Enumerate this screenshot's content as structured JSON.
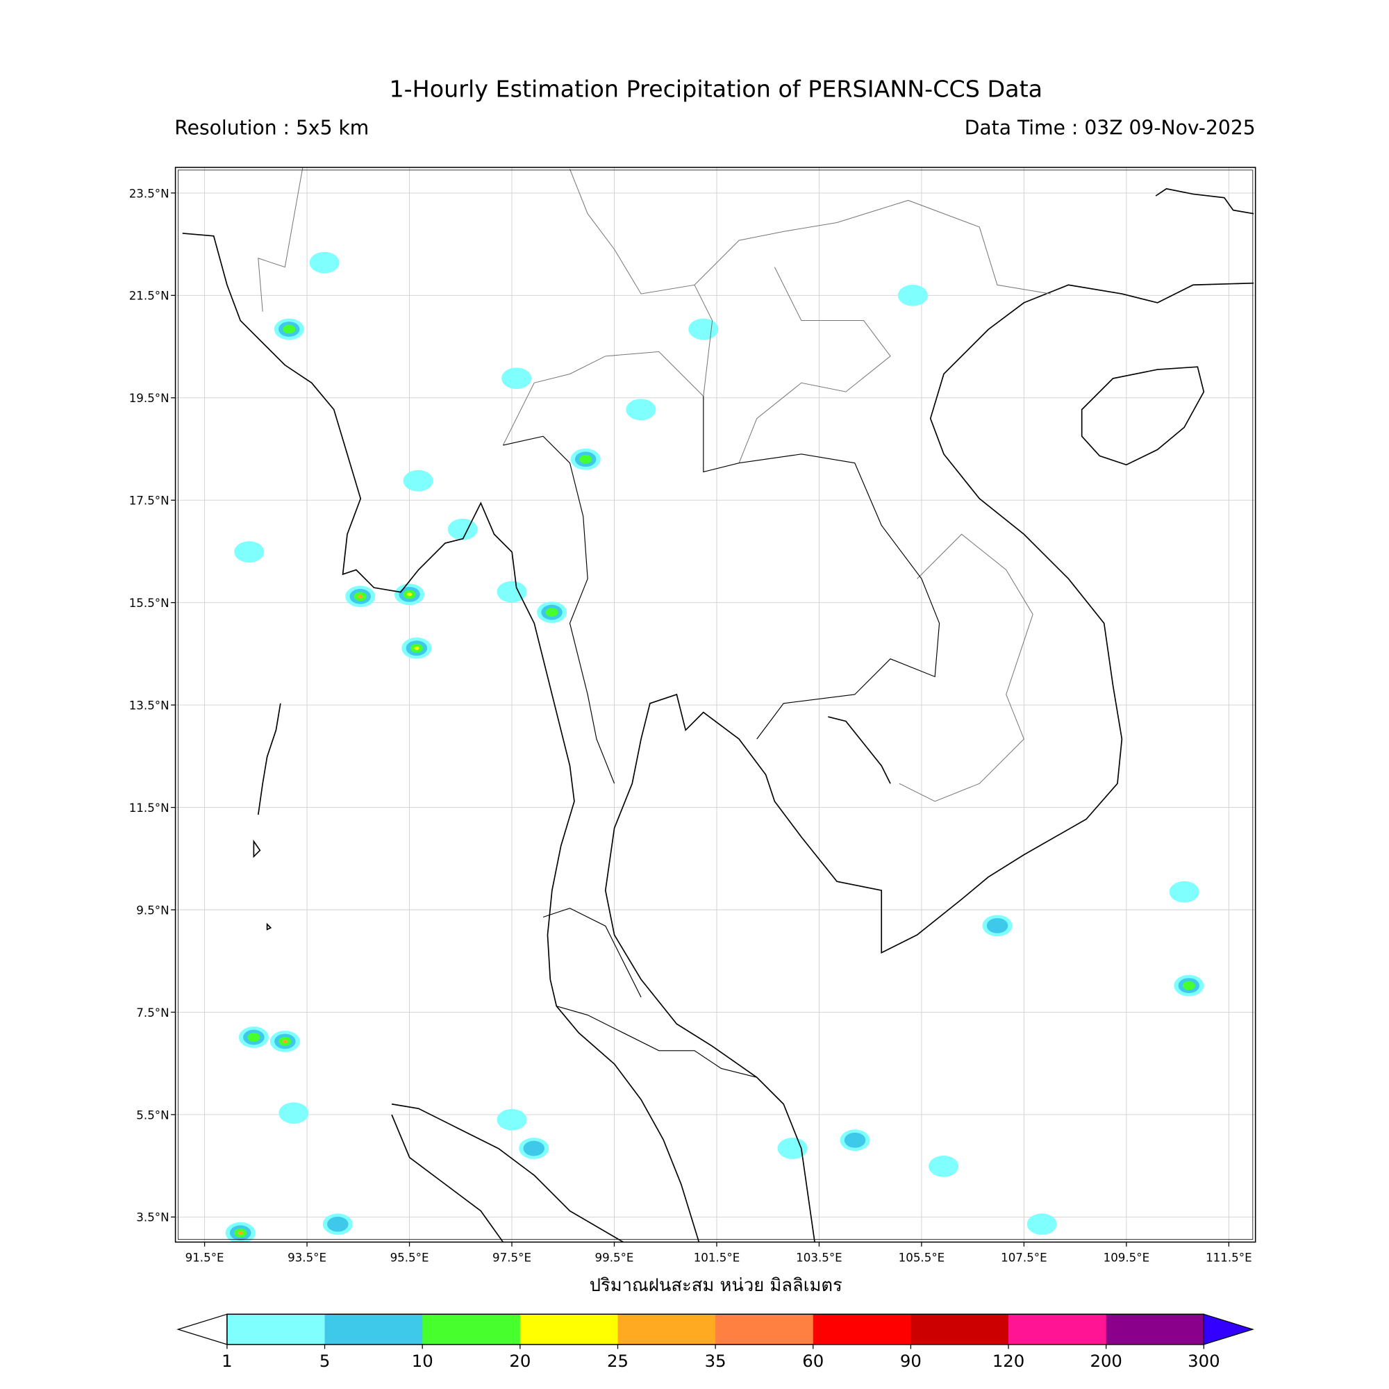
{
  "header": {
    "title": "1-Hourly Estimation Precipitation of PERSIANN-CCS Data",
    "resolution": "Resolution : 5x5 km",
    "data_time": "Data Time : 03Z 09-Nov-2025"
  },
  "map": {
    "extent_lon": [
      90.93,
      112.02
    ],
    "extent_lat": [
      3.01,
      24.0
    ],
    "lon_ticks": [
      "91.5°E",
      "93.5°E",
      "95.5°E",
      "97.5°E",
      "99.5°E",
      "101.5°E",
      "103.5°E",
      "105.5°E",
      "107.5°E",
      "109.5°E",
      "111.5°E"
    ],
    "lon_values": [
      91.5,
      93.5,
      95.5,
      97.5,
      99.5,
      101.5,
      103.5,
      105.5,
      107.5,
      109.5,
      111.5
    ],
    "lat_ticks": [
      "23.5°N",
      "21.5°N",
      "19.5°N",
      "17.5°N",
      "15.5°N",
      "13.5°N",
      "11.5°N",
      "9.5°N",
      "7.5°N",
      "5.5°N",
      "3.5°N"
    ],
    "lat_values": [
      23.5,
      21.5,
      19.5,
      17.5,
      15.5,
      13.5,
      11.5,
      9.5,
      7.5,
      5.5,
      3.5
    ],
    "grid": true,
    "rain_cells": [
      {
        "lon": 94.54,
        "lat": 15.62,
        "mm": 25
      },
      {
        "lon": 95.5,
        "lat": 15.66,
        "mm": 20
      },
      {
        "lon": 95.64,
        "lat": 14.61,
        "mm": 20
      },
      {
        "lon": 96.54,
        "lat": 16.93,
        "mm": 3
      },
      {
        "lon": 97.5,
        "lat": 15.71,
        "mm": 3
      },
      {
        "lon": 98.28,
        "lat": 15.31,
        "mm": 15
      },
      {
        "lon": 98.94,
        "lat": 18.3,
        "mm": 15
      },
      {
        "lon": 100.02,
        "lat": 19.27,
        "mm": 3
      },
      {
        "lon": 101.24,
        "lat": 20.84,
        "mm": 2
      },
      {
        "lon": 105.33,
        "lat": 21.5,
        "mm": 2
      },
      {
        "lon": 106.98,
        "lat": 9.19,
        "mm": 7
      },
      {
        "lon": 110.72,
        "lat": 8.02,
        "mm": 15
      },
      {
        "lon": 110.63,
        "lat": 9.85,
        "mm": 3
      },
      {
        "lon": 104.2,
        "lat": 5.0,
        "mm": 7
      },
      {
        "lon": 97.93,
        "lat": 4.84,
        "mm": 7
      },
      {
        "lon": 97.5,
        "lat": 5.4,
        "mm": 3
      },
      {
        "lon": 92.2,
        "lat": 3.19,
        "mm": 25
      },
      {
        "lon": 94.1,
        "lat": 3.36,
        "mm": 7
      },
      {
        "lon": 93.24,
        "lat": 5.53,
        "mm": 3
      },
      {
        "lon": 107.85,
        "lat": 3.36,
        "mm": 2
      },
      {
        "lon": 105.93,
        "lat": 4.49,
        "mm": 3
      },
      {
        "lon": 102.98,
        "lat": 4.84,
        "mm": 2
      },
      {
        "lon": 92.46,
        "lat": 7.01,
        "mm": 15
      },
      {
        "lon": 93.07,
        "lat": 6.93,
        "mm": 25
      },
      {
        "lon": 92.37,
        "lat": 16.49,
        "mm": 2
      },
      {
        "lon": 93.15,
        "lat": 20.84,
        "mm": 15
      },
      {
        "lon": 93.84,
        "lat": 22.14,
        "mm": 2
      },
      {
        "lon": 95.67,
        "lat": 17.88,
        "mm": 3
      },
      {
        "lon": 97.59,
        "lat": 19.88,
        "mm": 2
      }
    ]
  },
  "xlabel": "ปริมาณฝนสะสม หน่วย มิลลิเมตร",
  "colorbar": {
    "ticks": [
      "1",
      "5",
      "10",
      "20",
      "25",
      "35",
      "60",
      "90",
      "120",
      "200",
      "300"
    ],
    "bounds": [
      1,
      5,
      10,
      20,
      25,
      35,
      60,
      90,
      120,
      200,
      300
    ],
    "colors": [
      "#80ffff",
      "#3ec8ea",
      "#46ff2d",
      "#ffff00",
      "#ffaa20",
      "#ff8040",
      "#ff0000",
      "#cc0000",
      "#ff1493",
      "#8b008b"
    ],
    "under_color": "#ffffff",
    "over_color": "#3300ff"
  }
}
